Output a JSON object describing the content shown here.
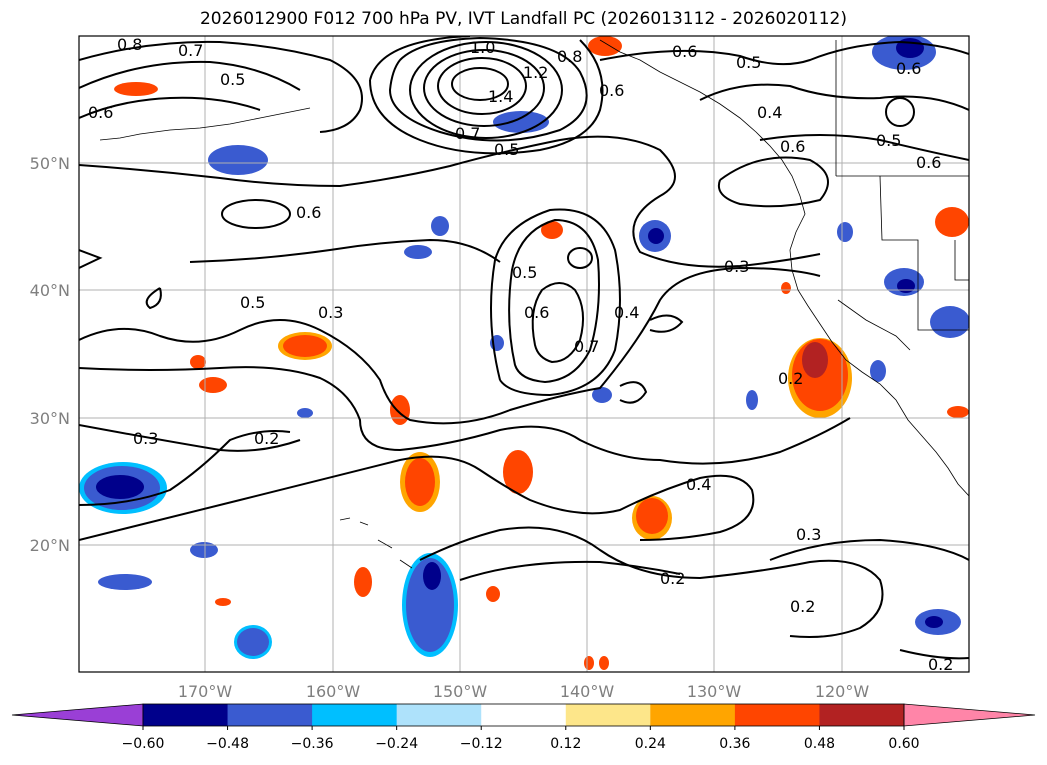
{
  "title": "2026012900 F012 700 hPa PV, IVT Landfall PC (2026013112 - 2026020112)",
  "map": {
    "lon_range": [
      -180,
      -110
    ],
    "lat_range": [
      10,
      60
    ],
    "lon_ticks": [
      {
        "lon": -170,
        "label": "170°W"
      },
      {
        "lon": -160,
        "label": "160°W"
      },
      {
        "lon": -150,
        "label": "150°W"
      },
      {
        "lon": -140,
        "label": "140°W"
      },
      {
        "lon": -130,
        "label": "130°W"
      },
      {
        "lon": -120,
        "label": "120°W"
      }
    ],
    "lat_ticks": [
      {
        "lat": 20,
        "label": "20°N"
      },
      {
        "lat": 30,
        "label": "30°N"
      },
      {
        "lat": 40,
        "label": "40°N"
      },
      {
        "lat": 50,
        "label": "50°N"
      }
    ],
    "grid": true,
    "contour_variable": "700 hPa PV",
    "contour_labels": [
      "0.8",
      "0.7",
      "0.5",
      "0.6",
      "1.0",
      "1.2",
      "1.4",
      "0.8",
      "0.6",
      "0.6",
      "0.5",
      "0.6",
      "0.4",
      "0.5",
      "0.6",
      "0.6",
      "0.7",
      "0.5",
      "0.6",
      "0.5",
      "0.3",
      "0.5",
      "0.6",
      "0.7",
      "0.4",
      "0.3",
      "0.2",
      "0.3",
      "0.2",
      "0.4",
      "0.3",
      "0.2",
      "0.2",
      "0.2"
    ],
    "shading_variable": "IVT Landfall PC"
  },
  "colorbar": {
    "levels": [
      -0.6,
      -0.48,
      -0.36,
      -0.24,
      -0.12,
      0.12,
      0.24,
      0.36,
      0.48,
      0.6
    ],
    "labels": [
      "−0.60",
      "−0.48",
      "−0.36",
      "−0.24",
      "−0.12",
      "0.12",
      "0.24",
      "0.36",
      "0.48",
      "0.60"
    ],
    "colors": [
      "#9a3fd6",
      "#00008b",
      "#3a5bd0",
      "#00bfff",
      "#aee2fb",
      "#ffffff",
      "#fde68a",
      "#ffa500",
      "#ff4500",
      "#b22222",
      "#ff85a8"
    ],
    "extend": "both"
  }
}
